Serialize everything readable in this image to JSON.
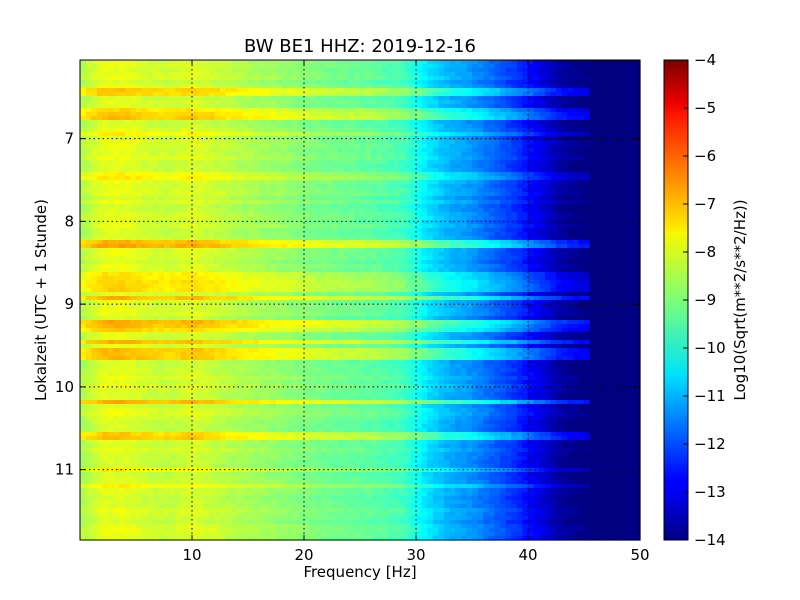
{
  "chart_data": {
    "type": "heatmap",
    "title": "BW BE1 HHZ: 2019-12-16",
    "xlabel": "Frequency [Hz]",
    "ylabel": "Lokalzeit (UTC + 1 Stunde)",
    "xlim": [
      0,
      50
    ],
    "ylim": [
      11.85,
      6.05
    ],
    "y_inverted": true,
    "x_ticks": [
      10,
      20,
      30,
      40,
      50
    ],
    "x_tick_labels": [
      "10",
      "20",
      "30",
      "40",
      "50"
    ],
    "y_ticks": [
      7,
      8,
      9,
      10,
      11
    ],
    "y_tick_labels": [
      "7",
      "8",
      "9",
      "10",
      "11"
    ],
    "grid": true,
    "colormap": "jet",
    "colorbar": {
      "label": "Log10(Sqrt(m**2/s**2/Hz))",
      "range": [
        -14,
        -4
      ],
      "ticks": [
        -14,
        -13,
        -12,
        -11,
        -10,
        -9,
        -8,
        -7,
        -6,
        -5,
        -4
      ],
      "tick_labels": [
        "−14",
        "−13",
        "−12",
        "−11",
        "−10",
        "−9",
        "−8",
        "−7",
        "−6",
        "−5",
        "−4"
      ]
    },
    "spectrum_profile": {
      "frequency_hz": [
        0,
        2,
        4,
        6,
        8,
        10,
        14,
        18,
        22,
        26,
        29,
        31,
        33,
        35,
        37,
        39,
        41,
        43,
        45,
        47,
        50
      ],
      "level": [
        -8.6,
        -8.0,
        -8.0,
        -8.2,
        -8.3,
        -8.1,
        -8.5,
        -8.8,
        -9.1,
        -9.3,
        -9.6,
        -10.5,
        -11.0,
        -11.3,
        -11.8,
        -12.3,
        -13.0,
        -13.7,
        -14.0,
        -14.0,
        -14.0
      ]
    },
    "bright_bands": [
      {
        "time": 6.45,
        "boost": 0.8
      },
      {
        "time": 6.65,
        "boost": 0.7
      },
      {
        "time": 6.72,
        "boost": 0.9
      },
      {
        "time": 6.95,
        "boost": 0.4
      },
      {
        "time": 7.45,
        "boost": 0.4
      },
      {
        "time": 8.27,
        "boost": 1.1
      },
      {
        "time": 8.65,
        "boost": 0.6
      },
      {
        "time": 8.75,
        "boost": 0.7
      },
      {
        "time": 8.82,
        "boost": 0.8
      },
      {
        "time": 8.92,
        "boost": 0.9
      },
      {
        "time": 9.22,
        "boost": 1.2
      },
      {
        "time": 9.3,
        "boost": 0.9
      },
      {
        "time": 9.45,
        "boost": 0.9
      },
      {
        "time": 9.55,
        "boost": 0.8
      },
      {
        "time": 9.63,
        "boost": 0.8
      },
      {
        "time": 10.18,
        "boost": 1.2
      },
      {
        "time": 10.58,
        "boost": 0.9
      },
      {
        "time": 11.0,
        "boost": 0.4
      },
      {
        "time": 11.2,
        "boost": 0.4
      }
    ]
  }
}
